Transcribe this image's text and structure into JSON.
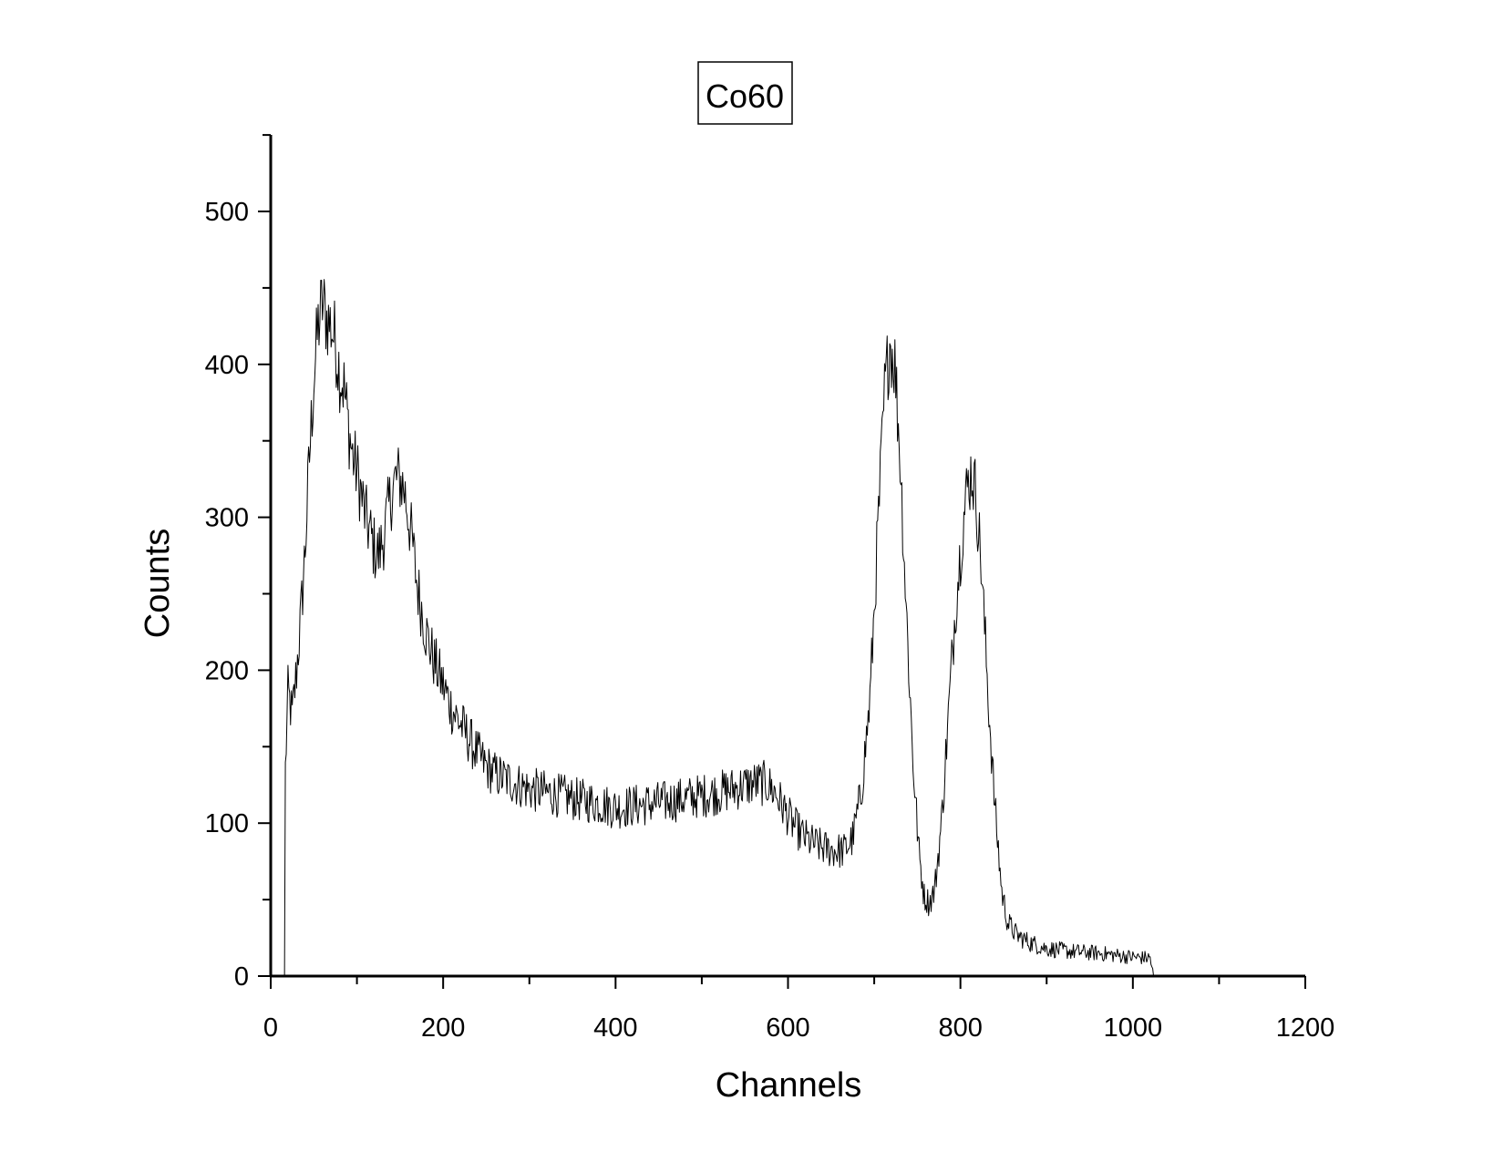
{
  "chart_data": {
    "type": "line",
    "title": "Co60",
    "xlabel": "Channels",
    "ylabel": "Counts",
    "xlim": [
      0,
      1200
    ],
    "ylim": [
      0,
      550
    ],
    "xticks": [
      "0",
      "200",
      "400",
      "600",
      "800",
      "1000",
      "1200"
    ],
    "yticks": [
      "0",
      "100",
      "200",
      "300",
      "400",
      "500"
    ],
    "grid": false,
    "legend": "none",
    "line_color": "#000000",
    "channel_range": [
      16,
      1024
    ],
    "anchors": [
      [
        16,
        0
      ],
      [
        17,
        135
      ],
      [
        20,
        185
      ],
      [
        25,
        170
      ],
      [
        30,
        200
      ],
      [
        35,
        235
      ],
      [
        40,
        280
      ],
      [
        45,
        340
      ],
      [
        50,
        390
      ],
      [
        55,
        425
      ],
      [
        60,
        440
      ],
      [
        65,
        430
      ],
      [
        70,
        425
      ],
      [
        75,
        415
      ],
      [
        80,
        395
      ],
      [
        85,
        385
      ],
      [
        90,
        360
      ],
      [
        95,
        340
      ],
      [
        100,
        330
      ],
      [
        105,
        315
      ],
      [
        110,
        300
      ],
      [
        115,
        290
      ],
      [
        120,
        280
      ],
      [
        125,
        275
      ],
      [
        130,
        285
      ],
      [
        135,
        300
      ],
      [
        140,
        315
      ],
      [
        145,
        325
      ],
      [
        150,
        325
      ],
      [
        155,
        318
      ],
      [
        160,
        300
      ],
      [
        165,
        280
      ],
      [
        170,
        255
      ],
      [
        175,
        240
      ],
      [
        180,
        225
      ],
      [
        190,
        205
      ],
      [
        200,
        190
      ],
      [
        210,
        175
      ],
      [
        220,
        165
      ],
      [
        230,
        155
      ],
      [
        240,
        145
      ],
      [
        250,
        137
      ],
      [
        260,
        132
      ],
      [
        280,
        127
      ],
      [
        300,
        122
      ],
      [
        320,
        120
      ],
      [
        350,
        116
      ],
      [
        380,
        113
      ],
      [
        400,
        110
      ],
      [
        430,
        112
      ],
      [
        460,
        114
      ],
      [
        490,
        117
      ],
      [
        520,
        120
      ],
      [
        540,
        123
      ],
      [
        560,
        126
      ],
      [
        575,
        126
      ],
      [
        585,
        120
      ],
      [
        595,
        110
      ],
      [
        605,
        100
      ],
      [
        615,
        93
      ],
      [
        625,
        88
      ],
      [
        640,
        84
      ],
      [
        655,
        82
      ],
      [
        665,
        82
      ],
      [
        675,
        90
      ],
      [
        685,
        120
      ],
      [
        695,
        180
      ],
      [
        705,
        300
      ],
      [
        712,
        380
      ],
      [
        718,
        415
      ],
      [
        724,
        400
      ],
      [
        730,
        340
      ],
      [
        738,
        230
      ],
      [
        745,
        140
      ],
      [
        752,
        80
      ],
      [
        758,
        52
      ],
      [
        764,
        48
      ],
      [
        770,
        56
      ],
      [
        778,
        100
      ],
      [
        786,
        170
      ],
      [
        794,
        240
      ],
      [
        802,
        290
      ],
      [
        808,
        320
      ],
      [
        813,
        330
      ],
      [
        818,
        315
      ],
      [
        824,
        270
      ],
      [
        832,
        185
      ],
      [
        840,
        110
      ],
      [
        848,
        55
      ],
      [
        855,
        35
      ],
      [
        865,
        27
      ],
      [
        880,
        22
      ],
      [
        900,
        18
      ],
      [
        930,
        16
      ],
      [
        960,
        15
      ],
      [
        990,
        13
      ],
      [
        1010,
        12
      ],
      [
        1020,
        12
      ],
      [
        1024,
        0
      ]
    ],
    "noise_amplitude": {
      "comment": "",
      "low_channels": 18,
      "baseline_channels": 9
    }
  }
}
